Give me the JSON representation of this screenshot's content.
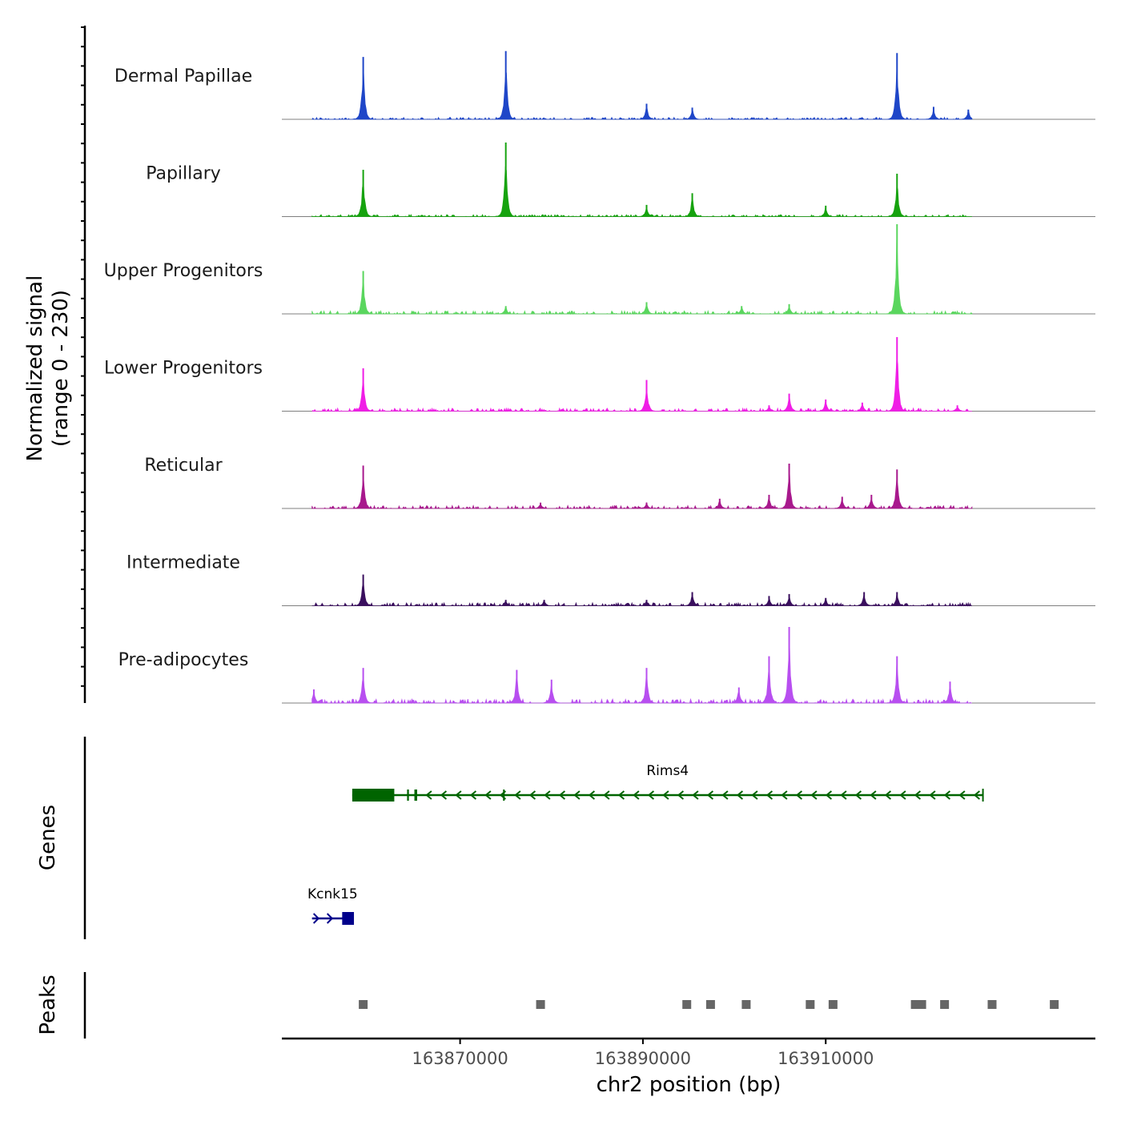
{
  "chart_data": {
    "type": "area",
    "title": "",
    "xlabel": "chr2 position (bp)",
    "ylabel_line1": "Normalized signal",
    "ylabel_line2": "(range 0 - 230)",
    "ylim": [
      0,
      230
    ],
    "xlim": [
      163850500,
      163939500
    ],
    "x_ticks": [
      163870000,
      163890000,
      163910000
    ],
    "x_tick_labels": [
      "163870000",
      "163890000",
      "163910000"
    ],
    "tracks": [
      {
        "name": "Dermal Papillae",
        "color": "#1f46c8",
        "baseline": 2,
        "peaks": [
          {
            "pos": 163859400,
            "height": 160
          },
          {
            "pos": 163875000,
            "height": 175
          },
          {
            "pos": 163890400,
            "height": 40
          },
          {
            "pos": 163895400,
            "height": 30
          },
          {
            "pos": 163917800,
            "height": 170
          },
          {
            "pos": 163921800,
            "height": 32
          },
          {
            "pos": 163925600,
            "height": 25
          }
        ]
      },
      {
        "name": "Papillary",
        "color": "#16a30f",
        "baseline": 2,
        "peaks": [
          {
            "pos": 163859400,
            "height": 120
          },
          {
            "pos": 163875000,
            "height": 190
          },
          {
            "pos": 163890400,
            "height": 30
          },
          {
            "pos": 163895400,
            "height": 60
          },
          {
            "pos": 163910000,
            "height": 28
          },
          {
            "pos": 163917800,
            "height": 110
          }
        ]
      },
      {
        "name": "Upper Progenitors",
        "color": "#5ad65e",
        "baseline": 3,
        "peaks": [
          {
            "pos": 163859400,
            "height": 110
          },
          {
            "pos": 163875000,
            "height": 20
          },
          {
            "pos": 163890400,
            "height": 30
          },
          {
            "pos": 163900800,
            "height": 20
          },
          {
            "pos": 163906000,
            "height": 25
          },
          {
            "pos": 163917800,
            "height": 230
          }
        ]
      },
      {
        "name": "Lower Progenitors",
        "color": "#f01ee6",
        "baseline": 3,
        "peaks": [
          {
            "pos": 163859400,
            "height": 110
          },
          {
            "pos": 163890400,
            "height": 80
          },
          {
            "pos": 163903800,
            "height": 15
          },
          {
            "pos": 163906000,
            "height": 45
          },
          {
            "pos": 163910000,
            "height": 30
          },
          {
            "pos": 163914000,
            "height": 22
          },
          {
            "pos": 163917800,
            "height": 190
          },
          {
            "pos": 163924400,
            "height": 15
          }
        ]
      },
      {
        "name": "Reticular",
        "color": "#a8198d",
        "baseline": 3,
        "peaks": [
          {
            "pos": 163859400,
            "height": 110
          },
          {
            "pos": 163878800,
            "height": 15
          },
          {
            "pos": 163890400,
            "height": 15
          },
          {
            "pos": 163898400,
            "height": 25
          },
          {
            "pos": 163903800,
            "height": 35
          },
          {
            "pos": 163906000,
            "height": 115
          },
          {
            "pos": 163911800,
            "height": 30
          },
          {
            "pos": 163915000,
            "height": 35
          },
          {
            "pos": 163917800,
            "height": 100
          }
        ]
      },
      {
        "name": "Intermediate",
        "color": "#3a0f5e",
        "baseline": 3,
        "peaks": [
          {
            "pos": 163859400,
            "height": 80
          },
          {
            "pos": 163875000,
            "height": 15
          },
          {
            "pos": 163879200,
            "height": 15
          },
          {
            "pos": 163890400,
            "height": 15
          },
          {
            "pos": 163895400,
            "height": 35
          },
          {
            "pos": 163903800,
            "height": 25
          },
          {
            "pos": 163906000,
            "height": 30
          },
          {
            "pos": 163910000,
            "height": 20
          },
          {
            "pos": 163914200,
            "height": 35
          },
          {
            "pos": 163917800,
            "height": 35
          }
        ]
      },
      {
        "name": "Pre-adipocytes",
        "color": "#b84ff0",
        "baseline": 4,
        "peaks": [
          {
            "pos": 163854000,
            "height": 35
          },
          {
            "pos": 163859400,
            "height": 90
          },
          {
            "pos": 163876200,
            "height": 85
          },
          {
            "pos": 163880000,
            "height": 60
          },
          {
            "pos": 163890400,
            "height": 90
          },
          {
            "pos": 163900500,
            "height": 40
          },
          {
            "pos": 163903800,
            "height": 120
          },
          {
            "pos": 163906000,
            "height": 195
          },
          {
            "pos": 163917800,
            "height": 120
          },
          {
            "pos": 163923600,
            "height": 55
          }
        ]
      }
    ],
    "genes": [
      {
        "name": "Rims4",
        "color": "#006400",
        "strand": "-",
        "start": 163858200,
        "end": 163927200,
        "exons": [
          [
            163858200,
            163862800
          ],
          [
            163864200,
            163864400
          ],
          [
            163865000,
            163865300
          ],
          [
            163874700,
            163874850
          ]
        ]
      },
      {
        "name": "Kcnk15",
        "color": "#00008b",
        "strand": "+",
        "start": 163853800,
        "end": 163858300,
        "exons": [
          [
            163857100,
            163858300
          ]
        ]
      }
    ],
    "peaks_track": {
      "label": "Peaks",
      "color": "#666666",
      "positions": [
        163859400,
        163878800,
        163894800,
        163897400,
        163901300,
        163908300,
        163910800,
        163919800,
        163920500,
        163923000,
        163928200,
        163935000
      ]
    },
    "gene_track_label": "Genes"
  }
}
